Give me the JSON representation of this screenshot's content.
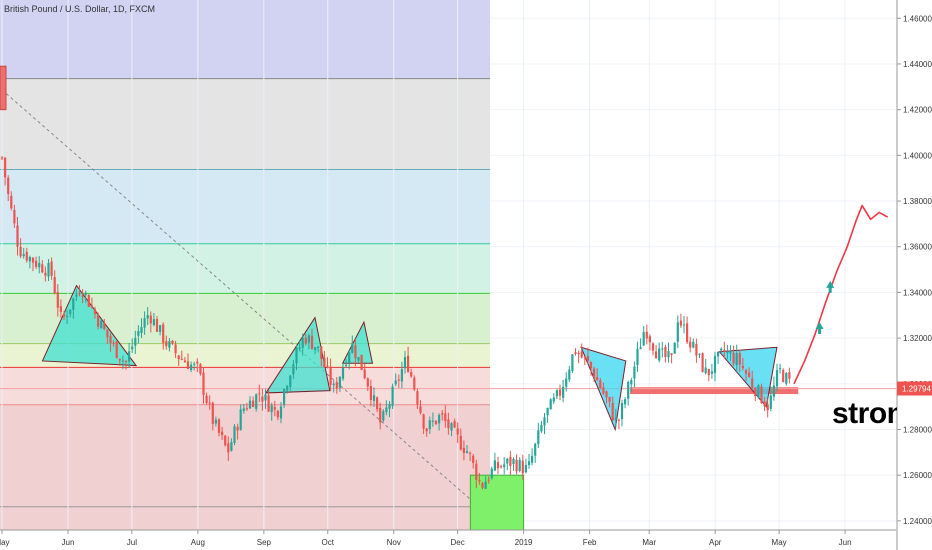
{
  "symbol_title": "British Pound / U.S. Dollar, 1D, FXCM",
  "annotation_text": "strong",
  "colors": {
    "up_candle": "#26a69a",
    "down_candle": "#ef5350",
    "projection": "#f23645",
    "pattern_fill": "#3fe0d0",
    "pattern_fill_blue": "#38d6f0",
    "support_zone": "#f07070",
    "price_label_bg": "#ef5350",
    "fib_bands": [
      "#d2d3f2",
      "#e4e4e4",
      "#d5e9f4",
      "#d3f2e6",
      "#d8f0d0",
      "#eaf4d2",
      "#f7dcdc",
      "#f0d0d0"
    ]
  },
  "chart_data": {
    "type": "candlestick",
    "title": "British Pound / U.S. Dollar, 1D, FXCM",
    "x_ticks": [
      "May",
      "Jun",
      "Jul",
      "Aug",
      "Sep",
      "Oct",
      "Nov",
      "Dec",
      "2019",
      "Feb",
      "Mar",
      "Apr",
      "May",
      "Jun"
    ],
    "y_ticks": [
      "1.46000",
      "1.44000",
      "1.42000",
      "1.40000",
      "1.38000",
      "1.36000",
      "1.34000",
      "1.32000",
      "1.30000",
      "1.28000",
      "1.26000",
      "1.24000"
    ],
    "ylim": [
      1.236,
      1.468
    ],
    "last_price": "1.29794",
    "fib_levels": [
      1.4336,
      1.3938,
      1.3613,
      1.3396,
      1.3176,
      1.3072,
      1.2908,
      1.2462
    ],
    "price_path": [
      [
        "2018-05-01",
        1.399
      ],
      [
        "2018-05-04",
        1.382
      ],
      [
        "2018-05-09",
        1.359
      ],
      [
        "2018-05-17",
        1.353
      ],
      [
        "2018-05-24",
        1.349
      ],
      [
        "2018-05-29",
        1.327
      ],
      [
        "2018-06-07",
        1.343
      ],
      [
        "2018-06-14",
        1.33
      ],
      [
        "2018-06-21",
        1.318
      ],
      [
        "2018-06-28",
        1.309
      ],
      [
        "2018-07-03",
        1.321
      ],
      [
        "2018-07-09",
        1.331
      ],
      [
        "2018-07-17",
        1.318
      ],
      [
        "2018-07-23",
        1.312
      ],
      [
        "2018-08-01",
        1.306
      ],
      [
        "2018-08-08",
        1.284
      ],
      [
        "2018-08-15",
        1.27
      ],
      [
        "2018-08-22",
        1.289
      ],
      [
        "2018-08-30",
        1.296
      ],
      [
        "2018-09-07",
        1.287
      ],
      [
        "2018-09-14",
        1.308
      ],
      [
        "2018-09-20",
        1.321
      ],
      [
        "2018-09-26",
        1.316
      ],
      [
        "2018-10-04",
        1.297
      ],
      [
        "2018-10-12",
        1.318
      ],
      [
        "2018-10-19",
        1.303
      ],
      [
        "2018-10-26",
        1.282
      ],
      [
        "2018-11-01",
        1.297
      ],
      [
        "2018-11-07",
        1.311
      ],
      [
        "2018-11-16",
        1.28
      ],
      [
        "2018-11-23",
        1.286
      ],
      [
        "2018-11-30",
        1.277
      ],
      [
        "2018-12-06",
        1.27
      ],
      [
        "2018-12-12",
        1.255
      ],
      [
        "2018-12-18",
        1.263
      ],
      [
        "2018-12-27",
        1.266
      ],
      [
        "2019-01-03",
        1.262
      ],
      [
        "2019-01-11",
        1.286
      ],
      [
        "2019-01-18",
        1.296
      ],
      [
        "2019-01-25",
        1.315
      ],
      [
        "2019-02-01",
        1.308
      ],
      [
        "2019-02-08",
        1.295
      ],
      [
        "2019-02-14",
        1.282
      ],
      [
        "2019-02-21",
        1.304
      ],
      [
        "2019-02-27",
        1.325
      ],
      [
        "2019-03-05",
        1.313
      ],
      [
        "2019-03-12",
        1.31
      ],
      [
        "2019-03-14",
        1.33
      ],
      [
        "2019-03-21",
        1.317
      ],
      [
        "2019-03-28",
        1.304
      ],
      [
        "2019-04-05",
        1.314
      ],
      [
        "2019-04-12",
        1.31
      ],
      [
        "2019-04-19",
        1.299
      ],
      [
        "2019-04-26",
        1.29
      ],
      [
        "2019-05-01",
        1.306
      ],
      [
        "2019-05-07",
        1.299
      ]
    ],
    "projection_path": [
      [
        "2019-05-08",
        1.3
      ],
      [
        "2019-05-13",
        1.31
      ],
      [
        "2019-05-18",
        1.322
      ],
      [
        "2019-05-23",
        1.336
      ],
      [
        "2019-05-28",
        1.349
      ],
      [
        "2019-06-02",
        1.36
      ],
      [
        "2019-06-06",
        1.371
      ],
      [
        "2019-06-09",
        1.378
      ],
      [
        "2019-06-13",
        1.372
      ],
      [
        "2019-06-17",
        1.375
      ],
      [
        "2019-06-21",
        1.373
      ]
    ]
  }
}
